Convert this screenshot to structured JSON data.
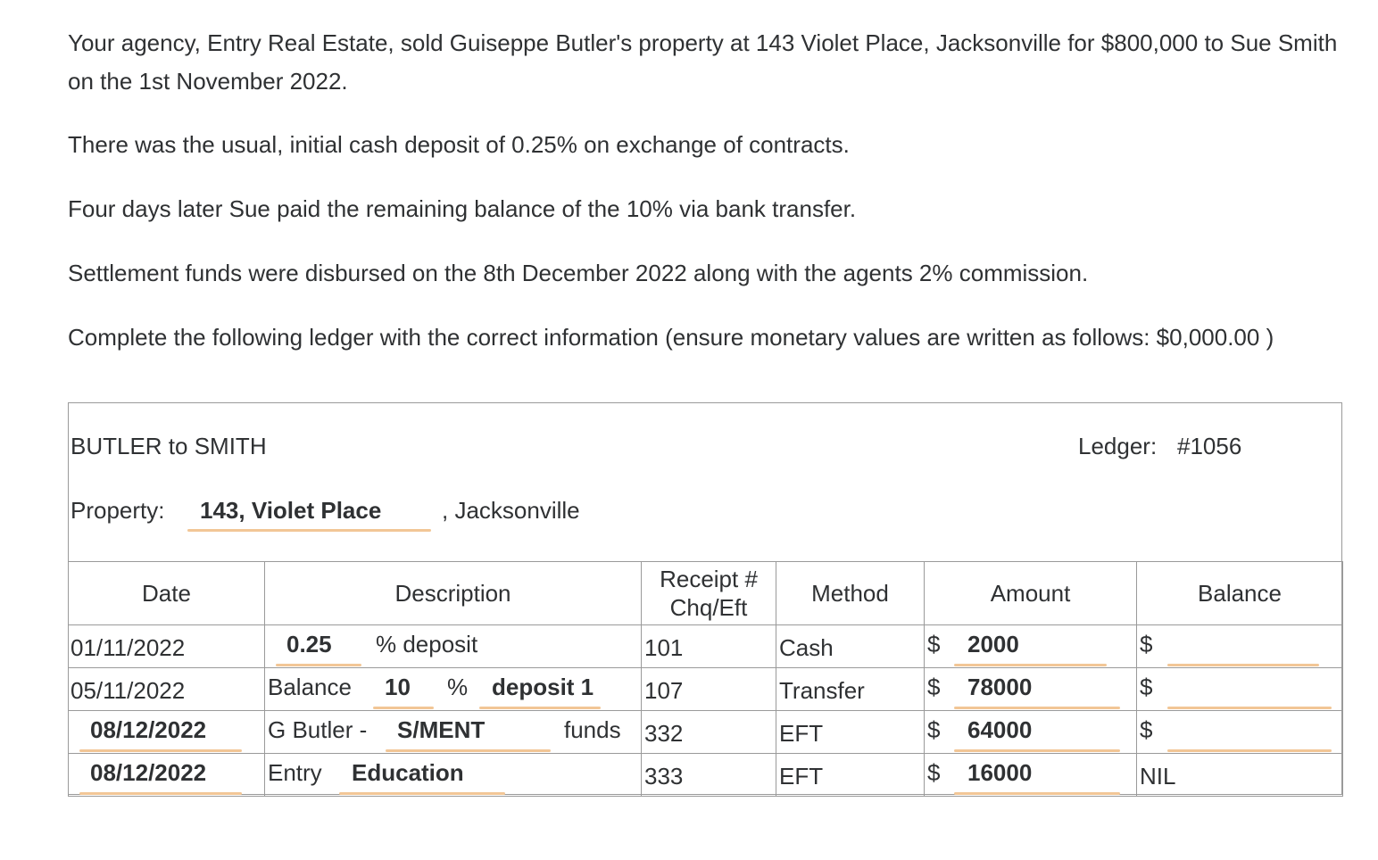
{
  "intro": {
    "p1": "Your agency, Entry Real Estate, sold Guiseppe Butler's property at 143 Violet Place, Jacksonville for $800,000 to Sue Smith on the 1st November 2022.",
    "p2": "There was the usual, initial cash deposit of 0.25% on exchange of contracts.",
    "p3": "Four days later Sue paid the remaining balance of the 10% via bank transfer.",
    "p4": "Settlement funds were disbursed on the 8th December 2022 along with the agents 2% commission.",
    "p5": "Complete the following ledger with the correct information (ensure monetary values are written as follows: $0,000.00 )"
  },
  "ledger": {
    "title": "BUTLER to SMITH",
    "ledger_label": "Ledger:",
    "ledger_number": "#1056",
    "property_label": "Property:",
    "property_value": "143, Violet Place",
    "property_suffix": ", Jacksonville",
    "headers": {
      "date": "Date",
      "description": "Description",
      "receipt_line1": "Receipt #",
      "receipt_line2": "Chq/Eft",
      "method": "Method",
      "amount": "Amount",
      "balance": "Balance"
    },
    "currency": "$",
    "rows": [
      {
        "date": "01/11/2022",
        "desc_input": "0.25",
        "desc_text": "% deposit",
        "receipt": "101",
        "method": "Cash",
        "amount": "2000",
        "balance": ""
      },
      {
        "date": "05/11/2022",
        "desc_prefix": "Balance",
        "desc_input1": "10",
        "desc_mid": "%",
        "desc_input2": "deposit 1",
        "receipt": "107",
        "method": "Transfer",
        "amount": "78000",
        "balance": ""
      },
      {
        "date": "08/12/2022",
        "desc_prefix": "G Butler -",
        "desc_input": "S/MENT",
        "desc_suffix": "funds",
        "receipt": "332",
        "method": "EFT",
        "amount": "64000",
        "balance": ""
      },
      {
        "date": "08/12/2022",
        "desc_prefix": "Entry",
        "desc_input": "Education",
        "receipt": "333",
        "method": "EFT",
        "amount": "16000",
        "balance_text": "NIL"
      }
    ]
  },
  "colors": {
    "text": "#2f3133",
    "border": "#9a9a9a",
    "input_underline": "#f2c696"
  }
}
